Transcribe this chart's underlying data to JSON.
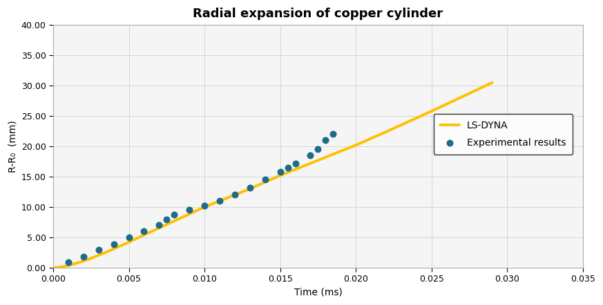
{
  "title": "Radial expansion of copper cylinder",
  "xlabel": "Time (ms)",
  "ylabel": "R-R₀  (mm)",
  "xlim": [
    0,
    0.035
  ],
  "ylim": [
    0,
    40
  ],
  "xticks": [
    0.0,
    0.005,
    0.01,
    0.015,
    0.02,
    0.025,
    0.03,
    0.035
  ],
  "yticks": [
    0,
    5,
    10,
    15,
    20,
    25,
    30,
    35,
    40
  ],
  "line_color": "#FFC000",
  "line_width": 2.8,
  "dot_color": "#1F6B8A",
  "dot_size": 38,
  "legend_line_label": "LS-DYNA",
  "legend_dot_label": "Experimental results",
  "lsdyna_x": [
    0.0,
    0.0005,
    0.001,
    0.0015,
    0.002,
    0.0025,
    0.003,
    0.0035,
    0.004,
    0.0045,
    0.005,
    0.006,
    0.007,
    0.008,
    0.009,
    0.01,
    0.011,
    0.012,
    0.013,
    0.014,
    0.015,
    0.016,
    0.017,
    0.018,
    0.019,
    0.02,
    0.022,
    0.025,
    0.029
  ],
  "lsdyna_y": [
    0.0,
    0.1,
    0.35,
    0.7,
    1.1,
    1.55,
    2.05,
    2.55,
    3.1,
    3.65,
    4.2,
    5.4,
    6.55,
    7.7,
    8.85,
    10.0,
    11.0,
    12.0,
    13.0,
    14.1,
    15.2,
    16.2,
    17.2,
    18.2,
    19.2,
    20.2,
    22.4,
    25.8,
    30.5
  ],
  "exp_x": [
    0.001,
    0.002,
    0.003,
    0.004,
    0.005,
    0.006,
    0.007,
    0.0075,
    0.008,
    0.009,
    0.01,
    0.011,
    0.012,
    0.013,
    0.014,
    0.015,
    0.0155,
    0.016,
    0.017,
    0.0175,
    0.018,
    0.0185
  ],
  "exp_y": [
    0.9,
    1.8,
    2.9,
    3.9,
    5.0,
    6.0,
    7.0,
    8.0,
    8.8,
    9.5,
    10.2,
    11.0,
    12.0,
    13.2,
    14.5,
    15.8,
    16.5,
    17.2,
    18.5,
    19.5,
    21.0,
    22.0
  ],
  "background_color": "#FFFFFF",
  "plot_bg_color": "#F5F5F5",
  "grid_color": "#D0D0D0",
  "title_fontsize": 13,
  "axis_fontsize": 10,
  "tick_fontsize": 9,
  "legend_fontsize": 10
}
